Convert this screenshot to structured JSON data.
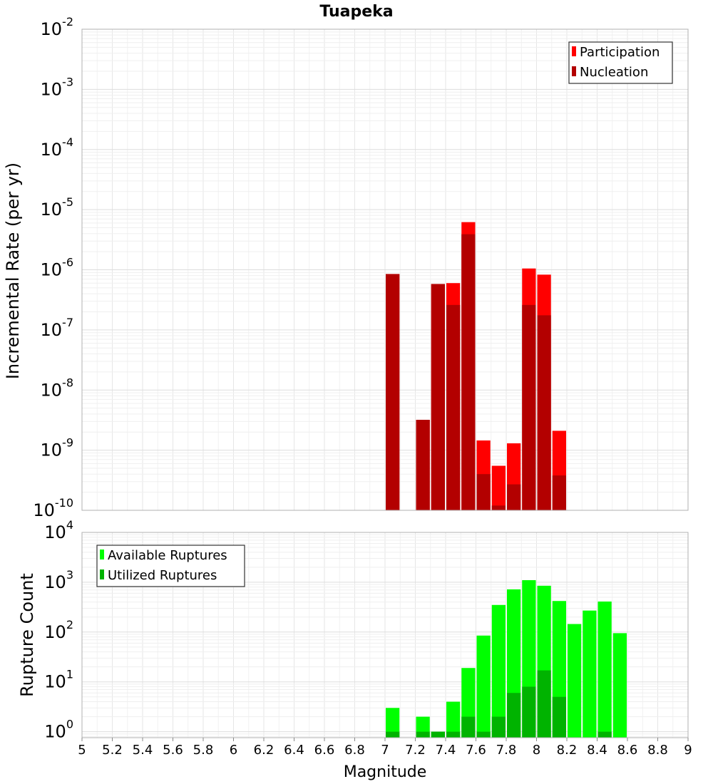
{
  "chart_data": [
    {
      "type": "bar",
      "title": "Tuapeka",
      "ylabel": "Incremental Rate (per yr)",
      "xlabel": "",
      "yscale": "log",
      "ylim_exp": [
        -10,
        -2
      ],
      "xlim": [
        5,
        9
      ],
      "bin_width": 0.1,
      "legend_position": "top-right",
      "y_tick_exponents": [
        "-10",
        "-9",
        "-8",
        "-7",
        "-6",
        "-5",
        "-4",
        "-3",
        "-2"
      ],
      "y_tick_base": "10",
      "x": [
        7.05,
        7.25,
        7.35,
        7.45,
        7.55,
        7.65,
        7.75,
        7.85,
        7.95,
        8.05,
        8.15
      ],
      "series": [
        {
          "name": "Participation",
          "color": "#ff0000",
          "values": [
            8.5e-07,
            3.2e-09,
            5.8e-07,
            6e-07,
            6.2e-06,
            1.45e-09,
            5.5e-10,
            1.3e-09,
            1.05e-06,
            8.3e-07,
            2.1e-09
          ]
        },
        {
          "name": "Nucleation",
          "color": "#b30000",
          "values": [
            8.5e-07,
            3.2e-09,
            5.8e-07,
            2.6e-07,
            3.9e-06,
            4e-10,
            1.2e-10,
            2.7e-10,
            2.6e-07,
            1.75e-07,
            3.8e-10
          ]
        }
      ]
    },
    {
      "type": "bar",
      "title": "",
      "ylabel": "Rupture Count",
      "xlabel": "Magnitude",
      "yscale": "log",
      "ylim_exp": [
        -0.12,
        4
      ],
      "xlim": [
        5,
        9
      ],
      "bin_width": 0.1,
      "legend_position": "top-left",
      "y_tick_exponents": [
        "0",
        "1",
        "2",
        "3",
        "4"
      ],
      "y_tick_base": "10",
      "x_tick_labels": [
        "5",
        "5.2",
        "5.4",
        "5.6",
        "5.8",
        "6",
        "6.2",
        "6.4",
        "6.6",
        "6.8",
        "7",
        "7.2",
        "7.4",
        "7.6",
        "7.8",
        "8",
        "8.2",
        "8.4",
        "8.6",
        "8.8",
        "9"
      ],
      "x": [
        7.05,
        7.25,
        7.35,
        7.45,
        7.55,
        7.65,
        7.75,
        7.85,
        7.95,
        8.05,
        8.15,
        8.25,
        8.35,
        8.45,
        8.55
      ],
      "series": [
        {
          "name": "Available Ruptures",
          "color": "#00ff00",
          "values": [
            3,
            2,
            1,
            4,
            19,
            85,
            350,
            720,
            1100,
            850,
            420,
            145,
            270,
            410,
            95
          ]
        },
        {
          "name": "Utilized Ruptures",
          "color": "#00b300",
          "values": [
            1,
            1,
            1,
            1,
            2,
            1,
            2,
            6,
            8,
            17,
            5,
            0,
            0,
            1,
            0
          ]
        }
      ]
    }
  ]
}
